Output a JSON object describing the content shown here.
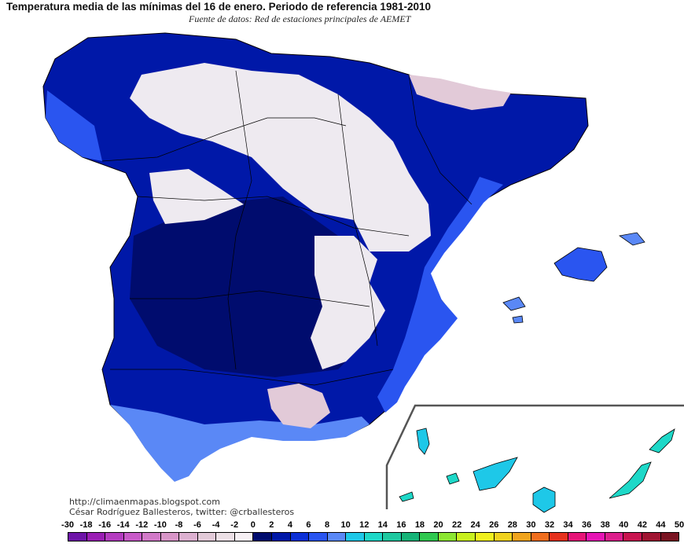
{
  "title": "Temperatura media de las mínimas del 16 de enero. Periodo de referencia 1981-2010",
  "subtitle": "Fuente de datos: Red de estaciones principales de AEMET",
  "credits": {
    "blog": "http://climaenmapas.blogspot.com",
    "author": "César Rodríguez Ballesteros, twitter: @crballesteros"
  },
  "legend": {
    "labels": [
      "-30",
      "-18",
      "-16",
      "-14",
      "-12",
      "-10",
      "-8",
      "-6",
      "-4",
      "-2",
      "0",
      "2",
      "4",
      "6",
      "8",
      "10",
      "12",
      "14",
      "16",
      "18",
      "20",
      "22",
      "24",
      "26",
      "28",
      "30",
      "32",
      "34",
      "36",
      "38",
      "40",
      "42",
      "44",
      "50"
    ],
    "colors": [
      "#6e14a8",
      "#9a1eb4",
      "#b43cc0",
      "#c85ac8",
      "#d27ac8",
      "#d896c8",
      "#dcb0d0",
      "#e2cad8",
      "#ece0e6",
      "#f6f0f4",
      "#000c6e",
      "#0018a8",
      "#0c30d6",
      "#2a55f0",
      "#5a88f6",
      "#1ec8e8",
      "#1ed8c8",
      "#1ec8a0",
      "#16b478",
      "#30c850",
      "#8ce632",
      "#c8f01e",
      "#f0f01e",
      "#f0d21e",
      "#f0a41e",
      "#f06e1e",
      "#e6321e",
      "#e61478",
      "#e614b4",
      "#dc1e8c",
      "#c81450",
      "#a01432",
      "#7a1422"
    ],
    "mark_value": "8"
  },
  "map": {
    "regions": [
      "Península Ibérica",
      "Islas Baleares",
      "Islas Canarias"
    ],
    "colors": {
      "sea": "#ffffff",
      "cold_dark": "#000c6e",
      "cold": "#0018a8",
      "mild": "#0c30d6",
      "warm": "#2a55f0",
      "coast": "#5a88f6",
      "frost": "#eeeaf0",
      "frost_high": "#e2cad8",
      "canary_warm": "#1ed8c8",
      "canary_mild": "#1ec8e8"
    }
  }
}
